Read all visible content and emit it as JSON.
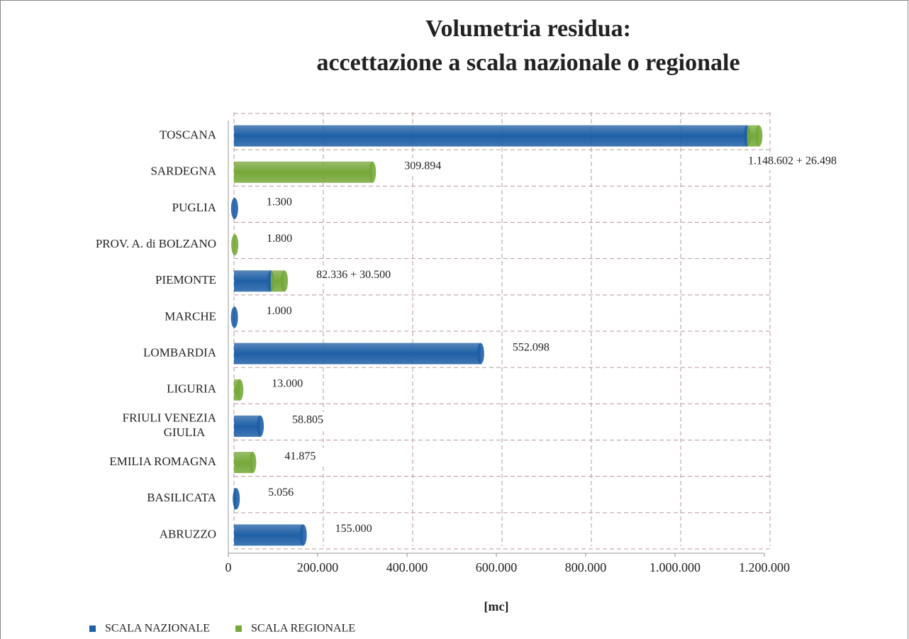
{
  "chart_data": {
    "type": "stacked-bar-horizontal",
    "title": "Volumetria residua:",
    "subtitle": "accettazione a scala nazionale o regionale",
    "xlabel": "[mc]",
    "categories": [
      "TOSCANA",
      "SARDEGNA",
      "PUGLIA",
      "PROV. A. di BOLZANO",
      "PIEMONTE",
      "MARCHE",
      "LOMBARDIA",
      "LIGURIA",
      "FRIULI VENEZIA GIULIA",
      "EMILIA ROMAGNA",
      "BASILICATA",
      "ABRUZZO"
    ],
    "series": [
      {
        "name": "SCALA NAZIONALE",
        "color": "#1f5fa6",
        "values": [
          1148602,
          null,
          1300,
          null,
          82336,
          1000,
          552098,
          null,
          58805,
          null,
          5056,
          155000
        ]
      },
      {
        "name": "SCALA REGIONALE",
        "color": "#77a83a",
        "values": [
          26498,
          309894,
          null,
          1800,
          30500,
          null,
          null,
          13000,
          null,
          41875,
          null,
          null
        ]
      }
    ],
    "value_labels": [
      "1.148.602 + 26.498",
      "309.894",
      "1.300",
      "1.800",
      "82.336 + 30.500",
      "1.000",
      "552.098",
      "13.000",
      "58.805",
      "41.875",
      "5.056",
      "155.000"
    ],
    "xlim": [
      0,
      1200000
    ],
    "xticks": [
      0,
      {
        "value": 200000,
        "label": "200.000"
      },
      {
        "value": 400000,
        "label": "400.000"
      },
      {
        "value": 600000,
        "label": "600.000"
      },
      {
        "value": 800000,
        "label": "800.000"
      },
      {
        "value": 1000000,
        "label": "1.000.000"
      },
      {
        "value": 1200000,
        "label": "1.200.000"
      }
    ],
    "grid": true,
    "legend": "bottom-left"
  }
}
